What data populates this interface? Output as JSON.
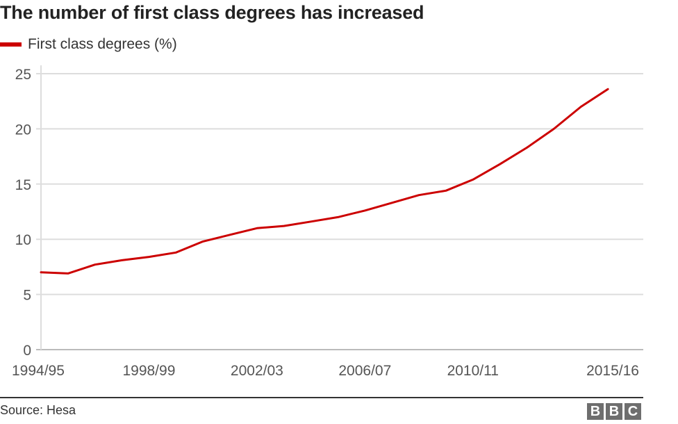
{
  "header": {
    "title": "The number of first class degrees has increased"
  },
  "legend": {
    "items": [
      {
        "label": "First class degrees (%)",
        "color": "#cc0000"
      }
    ]
  },
  "footer": {
    "source": "Source: Hesa",
    "logo_letters": [
      "B",
      "B",
      "C"
    ]
  },
  "chart_data": {
    "type": "line",
    "title": "The number of first class degrees has increased",
    "xlabel": "",
    "ylabel": "",
    "ylim": [
      0,
      25
    ],
    "yticks": [
      0,
      5,
      10,
      15,
      20,
      25
    ],
    "xtick_labels": [
      "1994/95",
      "1998/99",
      "2002/03",
      "2006/07",
      "2010/11",
      "2015/16"
    ],
    "grid": true,
    "legend_position": "top-left",
    "x": [
      "1994/95",
      "1995/96",
      "1996/97",
      "1997/98",
      "1998/99",
      "1999/00",
      "2000/01",
      "2001/02",
      "2002/03",
      "2003/04",
      "2004/05",
      "2005/06",
      "2006/07",
      "2007/08",
      "2008/09",
      "2009/10",
      "2010/11",
      "2011/12",
      "2012/13",
      "2013/14",
      "2014/15",
      "2015/16"
    ],
    "series": [
      {
        "name": "First class degrees (%)",
        "color": "#cc0000",
        "values": [
          7.0,
          6.9,
          7.7,
          8.1,
          8.4,
          8.8,
          9.8,
          10.4,
          11.0,
          11.2,
          11.6,
          12.0,
          12.6,
          13.3,
          14.0,
          14.4,
          15.4,
          16.8,
          18.3,
          20.0,
          22.0,
          23.6
        ]
      }
    ],
    "source": "Source: Hesa"
  }
}
